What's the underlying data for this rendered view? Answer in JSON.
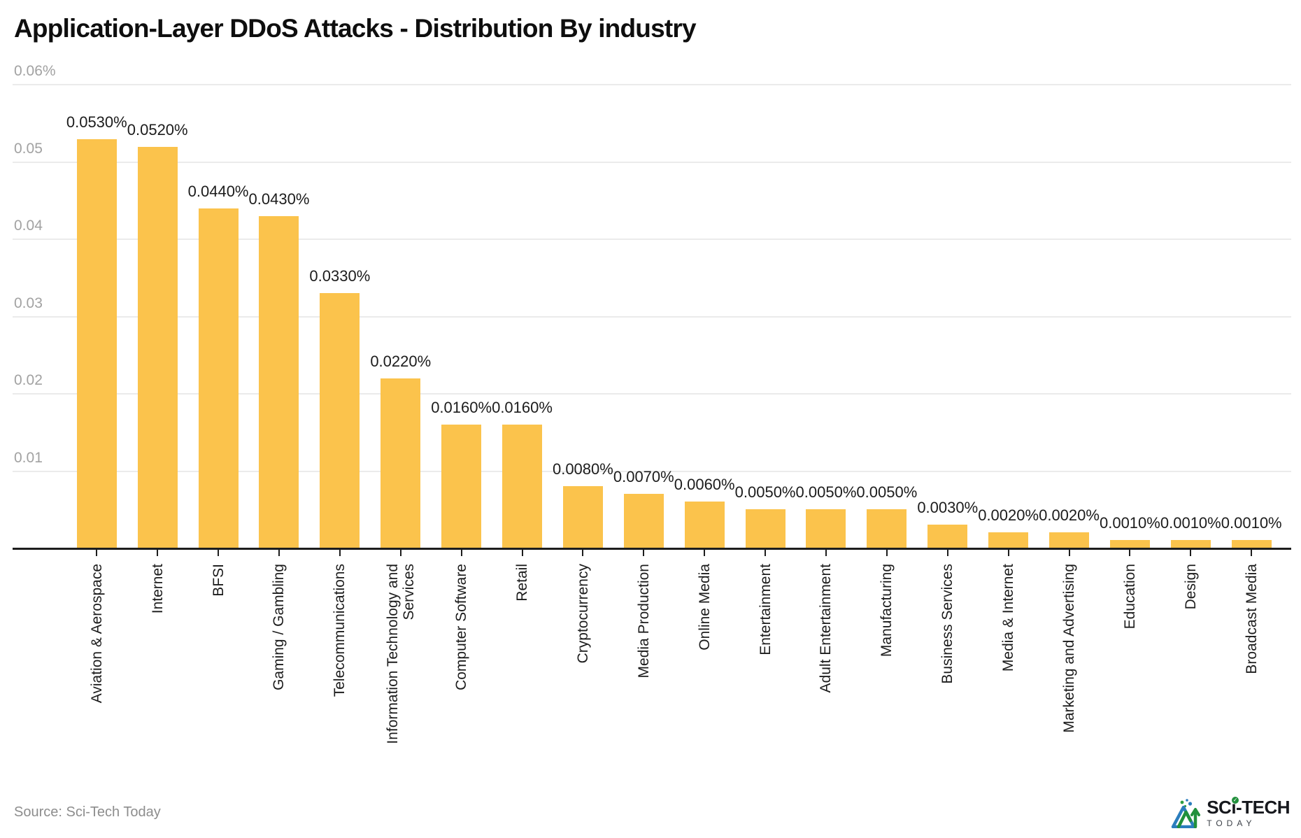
{
  "title": "Application-Layer DDoS Attacks - Distribution By industry",
  "y_axis": {
    "ticks": [
      "0.01",
      "0.02",
      "0.03",
      "0.04",
      "0.05",
      "0.06%"
    ]
  },
  "chart_data": {
    "type": "bar",
    "title": "Application-Layer DDoS Attacks - Distribution By industry",
    "categories": [
      "Aviation & Aerospace",
      "Internet",
      "BFSI",
      "Gaming / Gambling",
      "Telecommunications",
      "Information Technology and Services",
      "Computer Software",
      "Retail",
      "Cryptocurrency",
      "Media Production",
      "Online Media",
      "Entertainment",
      "Adult Entertainment",
      "Manufacturing",
      "Business Services",
      "Media & Internet",
      "Marketing and Advertising",
      "Education",
      "Design",
      "Broadcast Media"
    ],
    "values": [
      0.053,
      0.052,
      0.044,
      0.043,
      0.033,
      0.022,
      0.016,
      0.016,
      0.008,
      0.007,
      0.006,
      0.005,
      0.005,
      0.005,
      0.003,
      0.002,
      0.002,
      0.001,
      0.001,
      0.001
    ],
    "data_labels": [
      "0.0530%",
      "0.0520%",
      "0.0440%",
      "0.0430%",
      "0.0330%",
      "0.0220%",
      "0.0160%",
      "0.0160%",
      "0.0080%",
      "0.0070%",
      "0.0060%",
      "0.0050%",
      "0.0050%",
      "0.0050%",
      "0.0030%",
      "0.0020%",
      "0.0020%",
      "0.0010%",
      "0.0010%",
      "0.0010%"
    ],
    "xlabel": "",
    "ylabel": "",
    "ylim": [
      0,
      0.06
    ],
    "y_tick_labels": [
      "0.01",
      "0.02",
      "0.03",
      "0.04",
      "0.05",
      "0.06%"
    ],
    "grid": true,
    "legend_position": "none",
    "bar_color": "#FBC34C",
    "gridline_color": "#ebebeb",
    "axis_color": "#1d1d1d"
  },
  "footer": {
    "source": "Source: Sci-Tech Today",
    "logo_title": "SCi-TECH",
    "logo_subtitle": "TODAY"
  }
}
